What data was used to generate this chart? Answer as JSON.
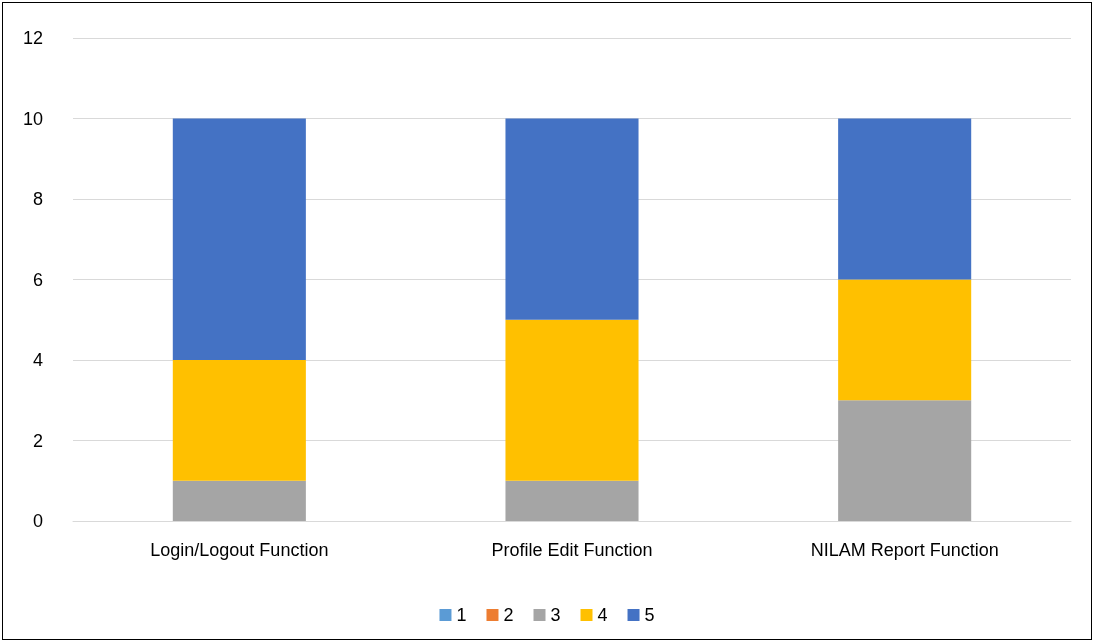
{
  "chart_data": {
    "type": "bar",
    "stacked": true,
    "categories": [
      "Login/Logout Function",
      "Profile Edit Function",
      "NILAM Report Function"
    ],
    "series": [
      {
        "name": "1",
        "color": "#5b9bd5",
        "values": [
          0,
          0,
          0
        ]
      },
      {
        "name": "2",
        "color": "#ed7d31",
        "values": [
          0,
          0,
          0
        ]
      },
      {
        "name": "3",
        "color": "#a5a5a5",
        "values": [
          1,
          1,
          3
        ]
      },
      {
        "name": "4",
        "color": "#ffc000",
        "values": [
          3,
          4,
          3
        ]
      },
      {
        "name": "5",
        "color": "#4472c4",
        "values": [
          6,
          5,
          4
        ]
      }
    ],
    "ylim": [
      0,
      12
    ],
    "yticks": [
      0,
      2,
      4,
      6,
      8,
      10,
      12
    ],
    "grid": "y",
    "legend": "bottom"
  }
}
